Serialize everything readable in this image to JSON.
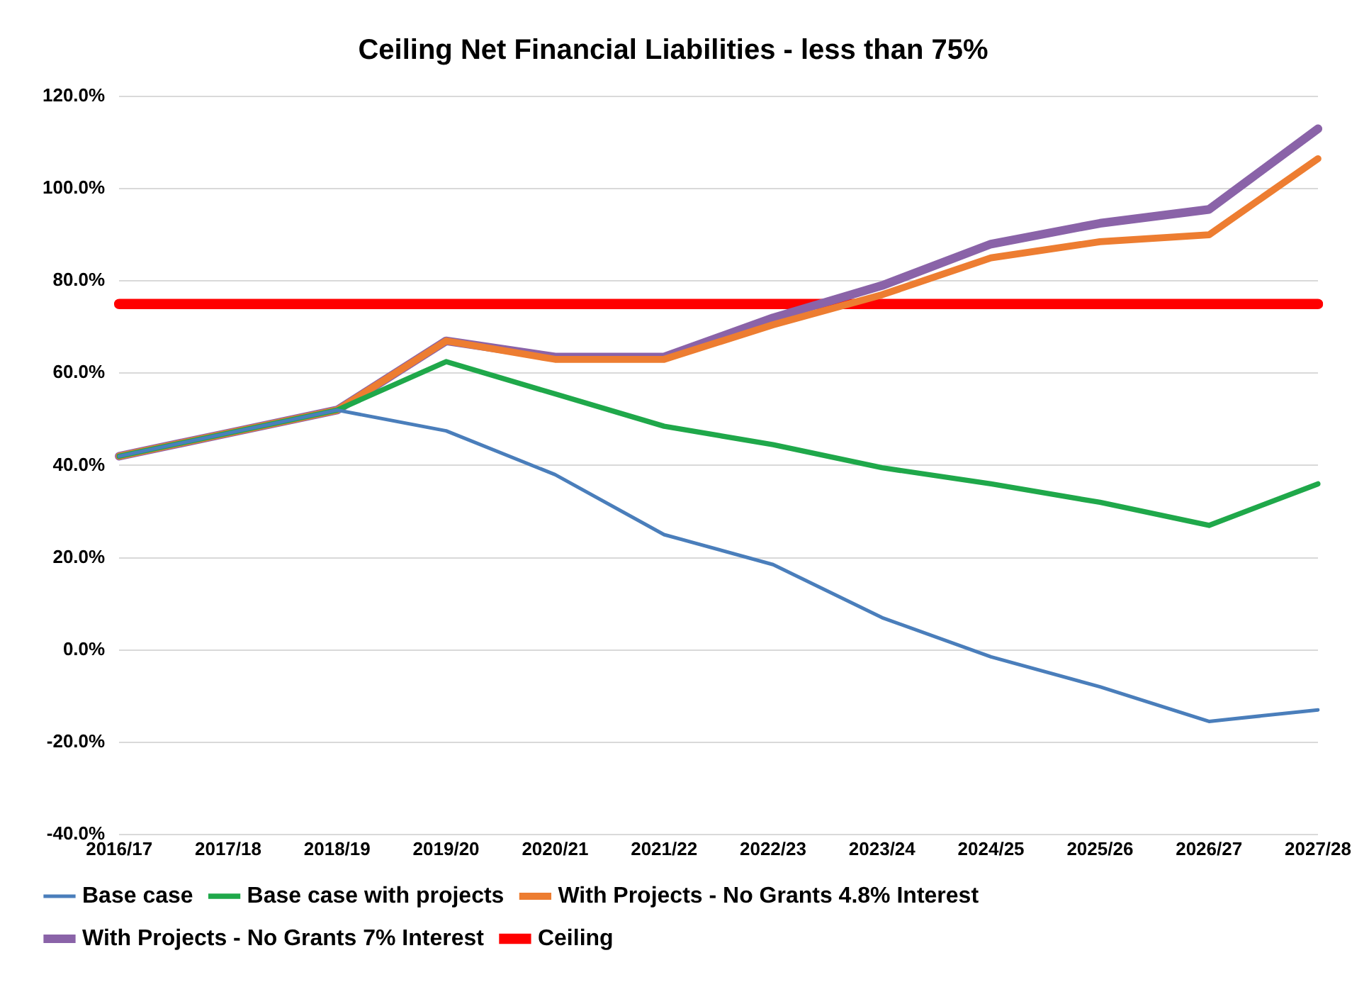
{
  "chart_data": {
    "type": "line",
    "title": "Ceiling Net Financial Liabilities - less than 75%",
    "categories": [
      "2016/17",
      "2017/18",
      "2018/19",
      "2019/20",
      "2020/21",
      "2021/22",
      "2022/23",
      "2023/24",
      "2024/25",
      "2025/26",
      "2026/27",
      "2027/28"
    ],
    "series": [
      {
        "name": "Base case",
        "color": "#4a7ebb",
        "values": [
          42,
          47,
          52,
          47.5,
          38,
          25,
          18.5,
          7,
          -1.5,
          -8,
          -15.5,
          -13
        ]
      },
      {
        "name": "Base case with projects",
        "color": "#1fa84a",
        "values": [
          42,
          47,
          52,
          62.5,
          55.5,
          48.5,
          44.5,
          39.5,
          36,
          32,
          27,
          36
        ]
      },
      {
        "name": "With Projects - No Grants 4.8% Interest",
        "color": "#ed7d31",
        "values": [
          42,
          47,
          52,
          67,
          63,
          63,
          70.5,
          77,
          85,
          88.5,
          90,
          106.5
        ]
      },
      {
        "name": "With Projects - No Grants 7% Interest",
        "color": "#8a63a8",
        "values": [
          42,
          47,
          52,
          67,
          63.5,
          63.5,
          72,
          79,
          88,
          92.5,
          95.5,
          113
        ]
      },
      {
        "name": "Ceiling",
        "color": "#ff0000",
        "values": [
          75,
          75,
          75,
          75,
          75,
          75,
          75,
          75,
          75,
          75,
          75,
          75
        ]
      }
    ],
    "ylim": [
      -40,
      120
    ],
    "yticks": [
      {
        "value": -40,
        "label": "-40.0%"
      },
      {
        "value": -20,
        "label": "-20.0%"
      },
      {
        "value": 0,
        "label": "0.0%"
      },
      {
        "value": 20,
        "label": "20.0%"
      },
      {
        "value": 40,
        "label": "40.0%"
      },
      {
        "value": 60,
        "label": "60.0%"
      },
      {
        "value": 80,
        "label": "80.0%"
      },
      {
        "value": 100,
        "label": "100.0%"
      },
      {
        "value": 120,
        "label": "120.0%"
      }
    ],
    "grid": "y",
    "legend": "bottom",
    "marker": "none",
    "line_style": "solid"
  }
}
